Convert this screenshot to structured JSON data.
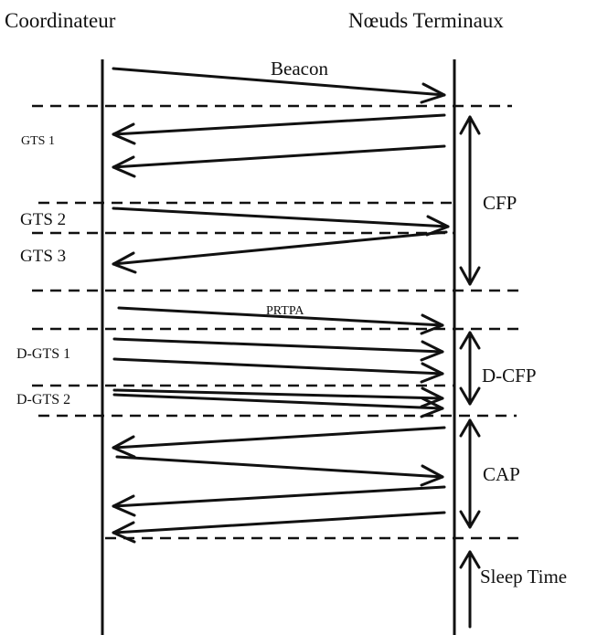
{
  "headers": {
    "left": "Coordinateur",
    "right": "Nœuds Terminaux"
  },
  "messages": {
    "beacon": "Beacon",
    "prtpa": "PRTPA"
  },
  "slots": {
    "gts1": "GTS 1",
    "gts2": "GTS 2",
    "gts3": "GTS 3",
    "dgts1": "D-GTS 1",
    "dgts2": "D-GTS 2"
  },
  "periods": {
    "cfp": "CFP",
    "dcfp": "D-CFP",
    "cap": "CAP",
    "sleep": "Sleep Time"
  }
}
